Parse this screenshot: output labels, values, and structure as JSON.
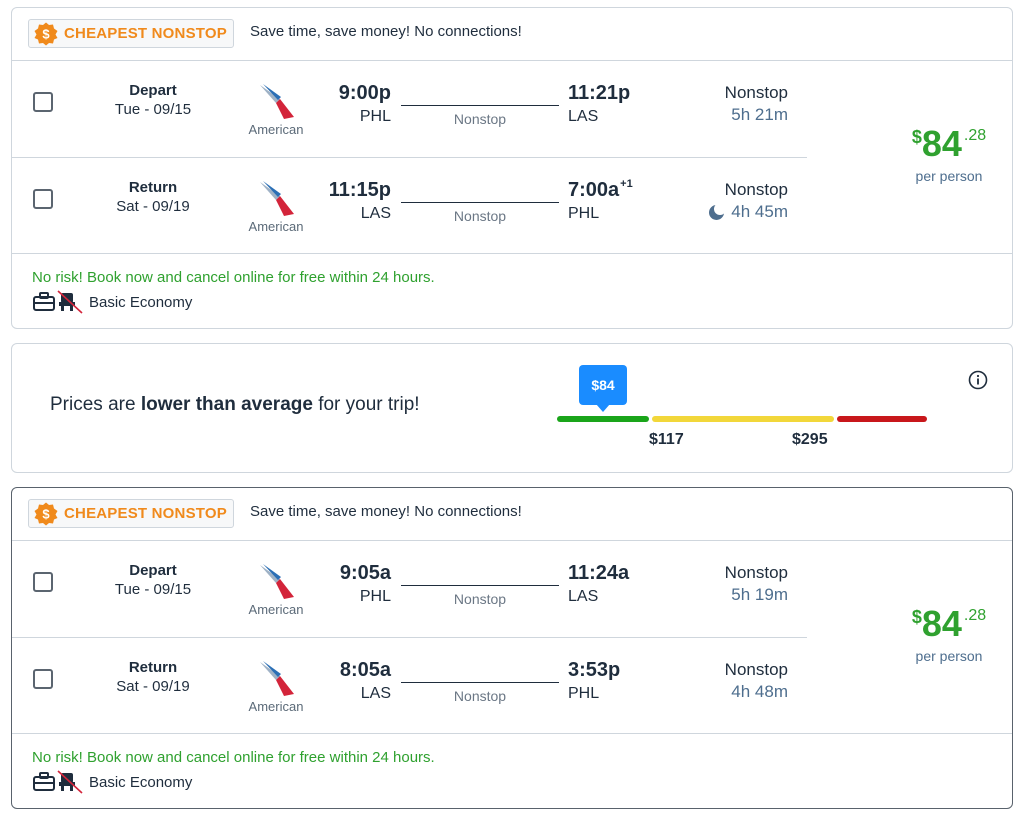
{
  "colors": {
    "accent_orange": "#f08a1c",
    "price_green": "#2fa12f",
    "tooltip_blue": "#1a8cff",
    "bar_green": "#1aa51a",
    "bar_yellow": "#f2d73a",
    "bar_red": "#c8171b"
  },
  "results": [
    {
      "badge": {
        "icon": "dollar-badge-icon",
        "label": "CHEAPEST NONSTOP"
      },
      "message": "Save time, save money! No connections!",
      "legs": [
        {
          "direction": "Depart",
          "date": "Tue - 09/15",
          "airline": "American",
          "dep_time": "9:00p",
          "dep_code": "PHL",
          "route_label": "Nonstop",
          "arr_time": "11:21p",
          "arr_day_offset": "",
          "arr_code": "LAS",
          "stops": "Nonstop",
          "duration": "5h 21m",
          "overnight": false
        },
        {
          "direction": "Return",
          "date": "Sat - 09/19",
          "airline": "American",
          "dep_time": "11:15p",
          "dep_code": "LAS",
          "route_label": "Nonstop",
          "arr_time": "7:00a",
          "arr_day_offset": "+1",
          "arr_code": "PHL",
          "stops": "Nonstop",
          "duration": "4h 45m",
          "overnight": true
        }
      ],
      "price": {
        "currency": "$",
        "whole": "84",
        "cents": ".28",
        "per": "per person"
      },
      "no_risk": "No risk! Book now and cancel online for free within 24 hours.",
      "fare_class": "Basic Economy"
    },
    {
      "badge": {
        "icon": "dollar-badge-icon",
        "label": "CHEAPEST NONSTOP"
      },
      "message": "Save time, save money! No connections!",
      "legs": [
        {
          "direction": "Depart",
          "date": "Tue - 09/15",
          "airline": "American",
          "dep_time": "9:05a",
          "dep_code": "PHL",
          "route_label": "Nonstop",
          "arr_time": "11:24a",
          "arr_day_offset": "",
          "arr_code": "LAS",
          "stops": "Nonstop",
          "duration": "5h 19m",
          "overnight": false
        },
        {
          "direction": "Return",
          "date": "Sat - 09/19",
          "airline": "American",
          "dep_time": "8:05a",
          "dep_code": "LAS",
          "route_label": "Nonstop",
          "arr_time": "3:53p",
          "arr_day_offset": "",
          "arr_code": "PHL",
          "stops": "Nonstop",
          "duration": "4h 48m",
          "overnight": false
        }
      ],
      "price": {
        "currency": "$",
        "whole": "84",
        "cents": ".28",
        "per": "per person"
      },
      "no_risk": "No risk! Book now and cancel online for free within 24 hours.",
      "fare_class": "Basic Economy"
    }
  ],
  "price_insight": {
    "text_before": "Prices are ",
    "text_bold": "lower than average",
    "text_after": " for your trip!",
    "current_price": "$84",
    "low_threshold": "$117",
    "high_threshold": "$295",
    "info_icon": "info-icon"
  }
}
